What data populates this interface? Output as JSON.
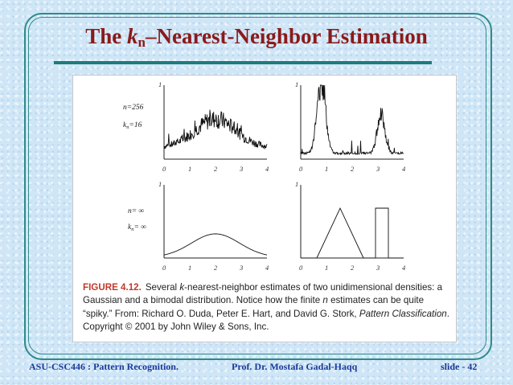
{
  "slide": {
    "title_prefix": "The ",
    "title_k": "k",
    "title_sub": "n",
    "title_rest": "–Nearest-Neighbor Estimation"
  },
  "figure": {
    "caption_label": "FIGURE 4.12.",
    "caption_pre": "Several ",
    "caption_k": "k",
    "caption_mid1": "-nearest-neighbor estimates of two unidimensional densities: a Gaussian and a bimodal distribution. Notice how the finite ",
    "caption_n": "n",
    "caption_mid2": " estimates can be quite “spiky.” From: Richard O. Duda, Peter E. Hart, and David G. Stork, ",
    "caption_book": "Pattern Classification",
    "caption_end": ". Copyright © 2001 by John Wiley & Sons, Inc.",
    "panels": [
      {
        "y_max_label": "1",
        "x_ticks": [
          "0",
          "1",
          "2",
          "3",
          "4"
        ],
        "param_n": "n=256",
        "param_k": "k",
        "param_k_sub": "n",
        "param_k_val": "=16"
      },
      {
        "y_max_label": "1",
        "x_ticks": [
          "0",
          "1",
          "2",
          "3",
          "4"
        ]
      },
      {
        "y_max_label": "1",
        "x_ticks": [
          "0",
          "1",
          "2",
          "3",
          "4"
        ],
        "param_n": "n= ∞",
        "param_k": "k",
        "param_k_sub": "n",
        "param_k_val": "= ∞"
      },
      {
        "y_max_label": "1",
        "x_ticks": [
          "0",
          "1",
          "2",
          "3",
          "4"
        ]
      }
    ]
  },
  "footer": {
    "left": "ASU-CSC446 :  Pattern Recognition.",
    "center": "Prof. Dr. Mostafa Gadal-Haqq",
    "right": "slide - 42"
  }
}
